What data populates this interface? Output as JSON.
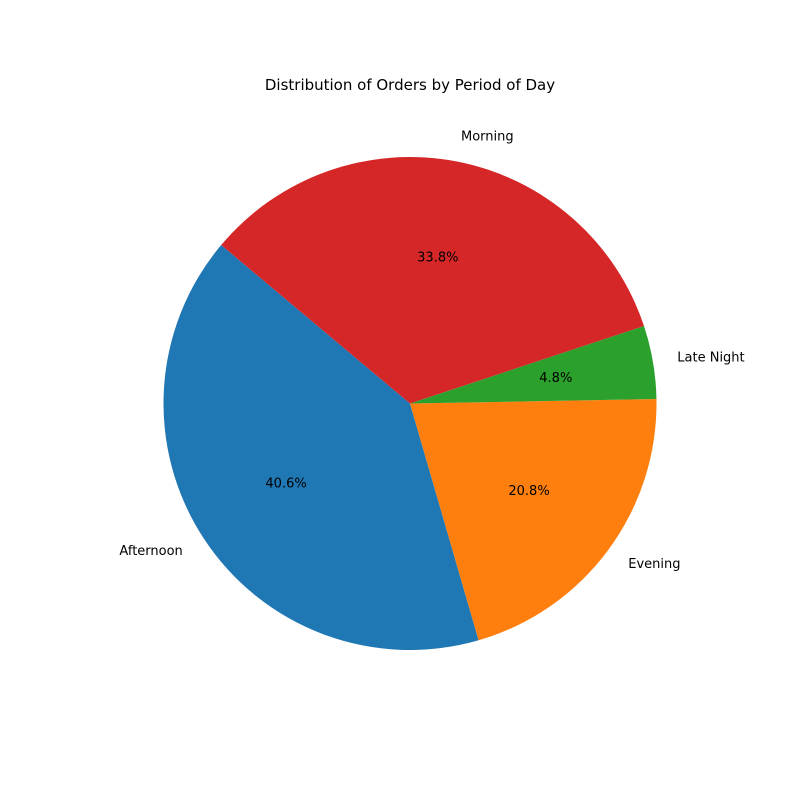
{
  "chart_data": {
    "type": "pie",
    "title": "Distribution of Orders by Period of Day",
    "start_angle_deg": 140,
    "direction": "counterclockwise",
    "slices": [
      {
        "label": "Afternoon",
        "value": 40.6,
        "pct_text": "40.6%",
        "color": "#1f77b4"
      },
      {
        "label": "Evening",
        "value": 20.8,
        "pct_text": "20.8%",
        "color": "#ff7f0e"
      },
      {
        "label": "Late Night",
        "value": 4.8,
        "pct_text": "4.8%",
        "color": "#2ca02c"
      },
      {
        "label": "Morning",
        "value": 33.8,
        "pct_text": "33.8%",
        "color": "#d62728"
      }
    ]
  }
}
